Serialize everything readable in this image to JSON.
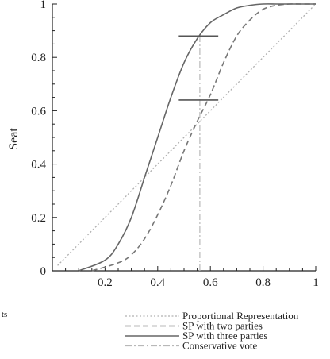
{
  "chart_data": {
    "type": "line",
    "title": "",
    "xlabel": "",
    "ylabel": "Seat",
    "xlim": [
      0,
      1
    ],
    "ylim": [
      0,
      1
    ],
    "x_ticks": [
      "0.2",
      "0.4",
      "0.6",
      "0.8",
      "1"
    ],
    "y_ticks": [
      "0",
      "0.2",
      "0.4",
      "0.6",
      "0.8",
      "1"
    ],
    "grid": false,
    "legend_position": "bottom-right",
    "series": [
      {
        "name": "Proportional Representation",
        "style": "dotted",
        "color": "#b0b0b0",
        "x": [
          0.02,
          1.0
        ],
        "y": [
          0.02,
          1.0
        ]
      },
      {
        "name": "SP with two parties",
        "style": "dashed",
        "color": "#777777",
        "x": [
          0.15,
          0.25,
          0.3,
          0.35,
          0.4,
          0.45,
          0.5,
          0.55,
          0.6,
          0.65,
          0.7,
          0.75,
          0.8,
          0.85,
          0.9,
          0.95,
          1.0
        ],
        "y": [
          0.0,
          0.03,
          0.06,
          0.12,
          0.21,
          0.32,
          0.45,
          0.56,
          0.66,
          0.78,
          0.88,
          0.94,
          0.98,
          0.995,
          1.0,
          1.0,
          1.0
        ]
      },
      {
        "name": "SP with three parties",
        "style": "solid",
        "color": "#666666",
        "x": [
          0.1,
          0.2,
          0.25,
          0.3,
          0.35,
          0.4,
          0.45,
          0.5,
          0.55,
          0.6,
          0.65,
          0.7,
          0.75,
          0.8,
          0.85,
          0.9,
          1.0
        ],
        "y": [
          0.0,
          0.04,
          0.1,
          0.2,
          0.35,
          0.5,
          0.65,
          0.78,
          0.87,
          0.93,
          0.96,
          0.985,
          0.995,
          1.0,
          1.0,
          1.0,
          1.0
        ]
      },
      {
        "name": "Conservative vote",
        "style": "dash-dot",
        "color": "#b8b8b8",
        "x": [
          0.56,
          0.56
        ],
        "y": [
          0.0,
          0.88
        ]
      }
    ],
    "annotations": [
      {
        "type": "horizontal-marker",
        "x_from": 0.48,
        "x_to": 0.63,
        "y": 0.88
      },
      {
        "type": "horizontal-marker",
        "x_from": 0.48,
        "x_to": 0.63,
        "y": 0.64
      }
    ]
  },
  "page": {
    "clipped_text": "ts"
  }
}
